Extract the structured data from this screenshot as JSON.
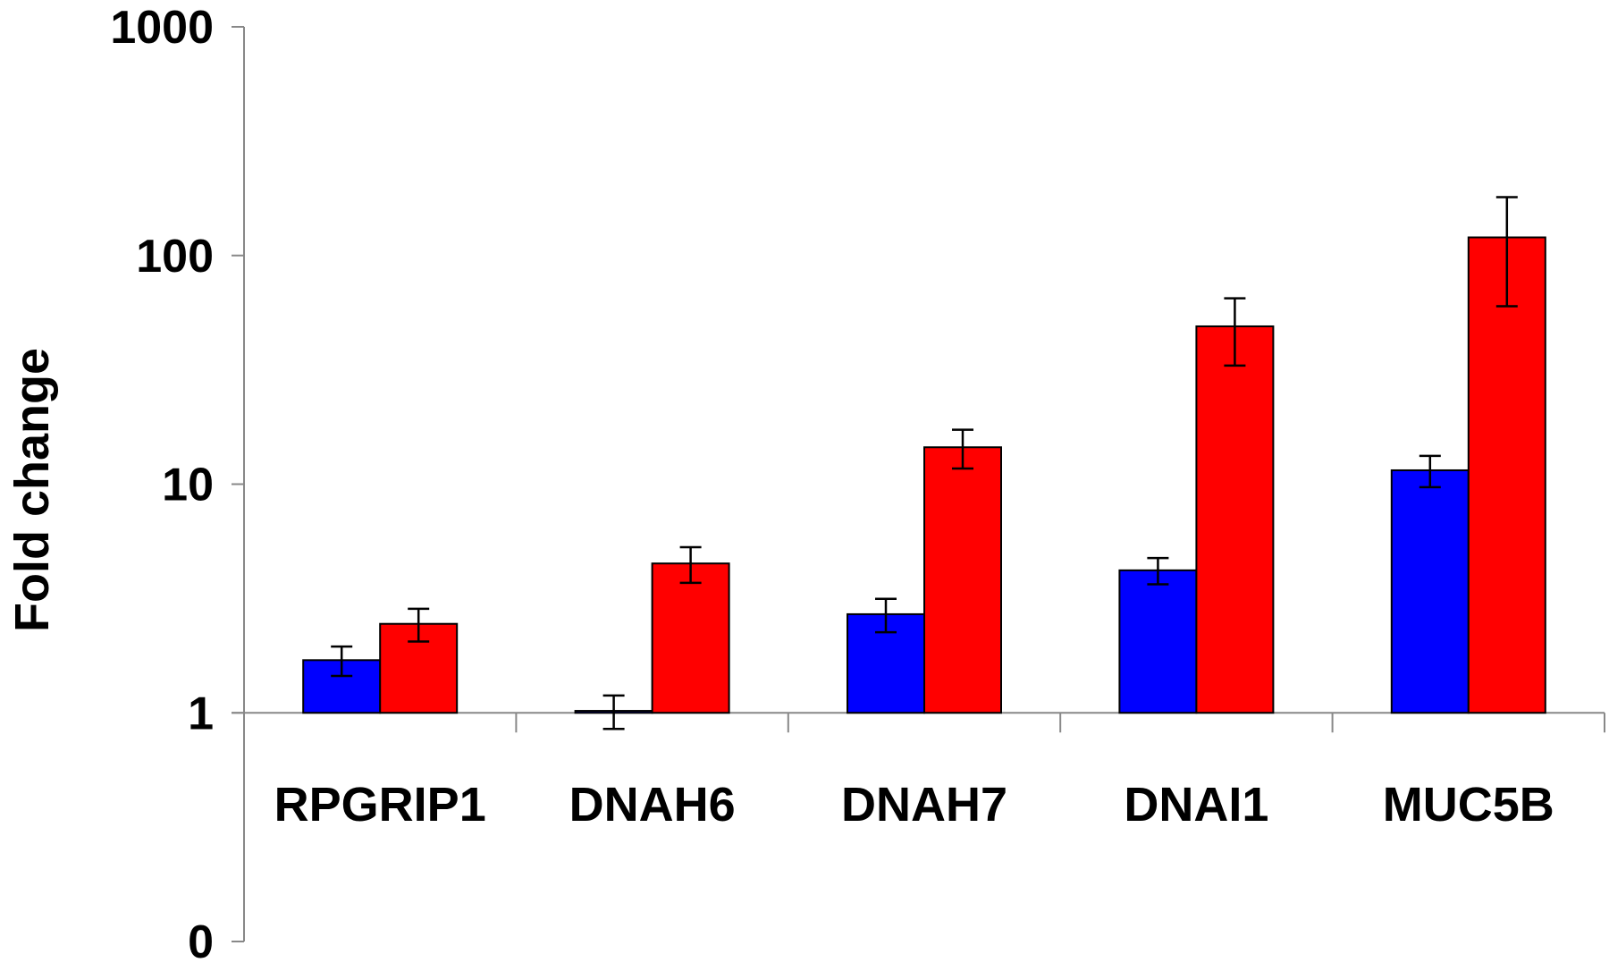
{
  "chart_data": {
    "type": "bar",
    "title": "",
    "xlabel": "",
    "ylabel": "Fold change",
    "yscale": "log",
    "ylim": [
      0.1,
      1000
    ],
    "baseline": 1,
    "yticks": [
      {
        "value": 0.1,
        "label": "0"
      },
      {
        "value": 1,
        "label": "1"
      },
      {
        "value": 10,
        "label": "10"
      },
      {
        "value": 100,
        "label": "100"
      },
      {
        "value": 1000,
        "label": "1000"
      }
    ],
    "grid": false,
    "legend": "none",
    "categories": [
      "RPGRIP1",
      "DNAH6",
      "DNAH7",
      "DNAI1",
      "MUC5B"
    ],
    "series": [
      {
        "color": "#0000ff",
        "values": [
          1.7,
          1.02,
          2.7,
          4.2,
          11.5
        ],
        "errors": [
          0.25,
          0.17,
          0.45,
          0.55,
          1.8
        ]
      },
      {
        "color": "#ff0000",
        "values": [
          2.45,
          4.5,
          14.5,
          49,
          120
        ],
        "errors": [
          0.4,
          0.8,
          2.8,
          16,
          60
        ]
      }
    ]
  }
}
